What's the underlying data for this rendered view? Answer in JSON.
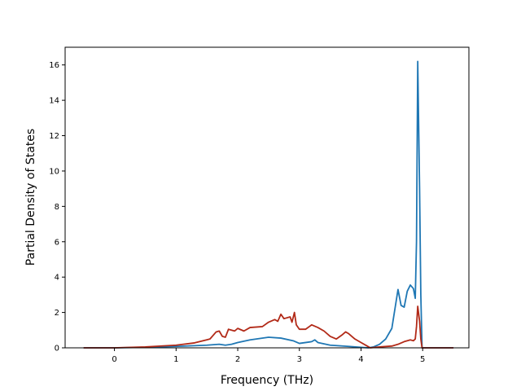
{
  "chart_data": {
    "type": "line",
    "title": "",
    "xlabel": "Frequency (THz)",
    "ylabel": "Partial Density of States",
    "xlim": [
      -0.8,
      5.75
    ],
    "ylim": [
      0,
      17
    ],
    "xticks": [
      0,
      1,
      2,
      3,
      4,
      5
    ],
    "yticks": [
      0,
      2,
      4,
      6,
      8,
      10,
      12,
      14,
      16
    ],
    "xtick_labels": [
      "0",
      "1",
      "2",
      "3",
      "4",
      "5"
    ],
    "ytick_labels": [
      "0",
      "2",
      "4",
      "6",
      "8",
      "10",
      "12",
      "14",
      "16"
    ],
    "grid": false,
    "legend": "none",
    "series": [
      {
        "color": "#1f77b4",
        "points": [
          [
            -0.5,
            0
          ],
          [
            0,
            0
          ],
          [
            0.5,
            0.03
          ],
          [
            1.0,
            0.08
          ],
          [
            1.5,
            0.15
          ],
          [
            1.7,
            0.2
          ],
          [
            1.8,
            0.15
          ],
          [
            1.9,
            0.2
          ],
          [
            2.0,
            0.3
          ],
          [
            2.2,
            0.45
          ],
          [
            2.5,
            0.6
          ],
          [
            2.7,
            0.55
          ],
          [
            2.9,
            0.4
          ],
          [
            3.0,
            0.25
          ],
          [
            3.2,
            0.35
          ],
          [
            3.25,
            0.45
          ],
          [
            3.3,
            0.3
          ],
          [
            3.5,
            0.15
          ],
          [
            3.8,
            0.08
          ],
          [
            4.0,
            0.03
          ],
          [
            4.12,
            0
          ],
          [
            4.2,
            0.05
          ],
          [
            4.3,
            0.2
          ],
          [
            4.4,
            0.5
          ],
          [
            4.5,
            1.1
          ],
          [
            4.55,
            2.2
          ],
          [
            4.6,
            3.3
          ],
          [
            4.65,
            2.4
          ],
          [
            4.7,
            2.3
          ],
          [
            4.75,
            3.2
          ],
          [
            4.8,
            3.55
          ],
          [
            4.85,
            3.35
          ],
          [
            4.88,
            2.8
          ],
          [
            4.9,
            6.0
          ],
          [
            4.92,
            16.2
          ],
          [
            4.95,
            9.0
          ],
          [
            4.97,
            3.0
          ],
          [
            4.99,
            0
          ],
          [
            5.5,
            0
          ]
        ]
      },
      {
        "color": "#b22a18",
        "points": [
          [
            -0.5,
            0
          ],
          [
            0,
            0
          ],
          [
            0.5,
            0.05
          ],
          [
            1.0,
            0.15
          ],
          [
            1.3,
            0.28
          ],
          [
            1.55,
            0.5
          ],
          [
            1.65,
            0.9
          ],
          [
            1.7,
            0.95
          ],
          [
            1.75,
            0.65
          ],
          [
            1.8,
            0.6
          ],
          [
            1.85,
            1.05
          ],
          [
            1.95,
            0.95
          ],
          [
            2.0,
            1.1
          ],
          [
            2.1,
            0.95
          ],
          [
            2.2,
            1.15
          ],
          [
            2.4,
            1.2
          ],
          [
            2.5,
            1.45
          ],
          [
            2.6,
            1.6
          ],
          [
            2.65,
            1.5
          ],
          [
            2.7,
            1.9
          ],
          [
            2.75,
            1.65
          ],
          [
            2.85,
            1.75
          ],
          [
            2.88,
            1.45
          ],
          [
            2.92,
            2.0
          ],
          [
            2.95,
            1.3
          ],
          [
            3.0,
            1.05
          ],
          [
            3.1,
            1.05
          ],
          [
            3.2,
            1.3
          ],
          [
            3.3,
            1.15
          ],
          [
            3.4,
            0.95
          ],
          [
            3.5,
            0.65
          ],
          [
            3.6,
            0.5
          ],
          [
            3.7,
            0.75
          ],
          [
            3.75,
            0.9
          ],
          [
            3.8,
            0.8
          ],
          [
            3.9,
            0.5
          ],
          [
            4.0,
            0.3
          ],
          [
            4.1,
            0.1
          ],
          [
            4.15,
            0
          ],
          [
            4.3,
            0.05
          ],
          [
            4.5,
            0.1
          ],
          [
            4.6,
            0.2
          ],
          [
            4.7,
            0.35
          ],
          [
            4.8,
            0.45
          ],
          [
            4.85,
            0.4
          ],
          [
            4.88,
            0.5
          ],
          [
            4.9,
            1.2
          ],
          [
            4.92,
            2.35
          ],
          [
            4.95,
            1.5
          ],
          [
            4.97,
            0.5
          ],
          [
            4.99,
            0
          ],
          [
            5.5,
            0
          ]
        ]
      }
    ]
  }
}
